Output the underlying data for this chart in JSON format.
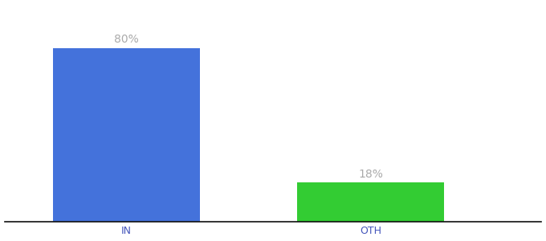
{
  "categories": [
    "IN",
    "OTH"
  ],
  "values": [
    80,
    18
  ],
  "bar_colors": [
    "#4472db",
    "#33cc33"
  ],
  "label_texts": [
    "80%",
    "18%"
  ],
  "background_color": "#ffffff",
  "ylim": [
    0,
    100
  ],
  "bar_width": 0.6,
  "label_fontsize": 10,
  "tick_fontsize": 9,
  "label_color": "#aaaaaa",
  "tick_color": "#4455bb",
  "axis_line_color": "#111111"
}
